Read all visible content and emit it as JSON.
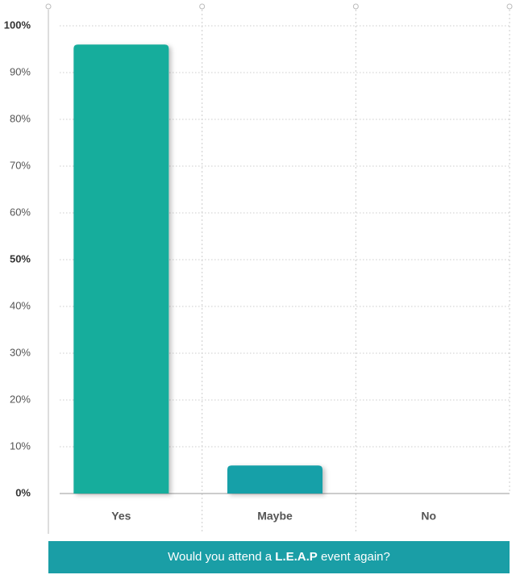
{
  "chart_data": {
    "type": "bar",
    "title_parts": [
      "Would you attend a ",
      "L.E.A.P",
      " event again?"
    ],
    "categories": [
      "Yes",
      "Maybe",
      "No"
    ],
    "values": [
      96,
      6,
      0
    ],
    "colors": [
      "#12ad9c",
      "#17a0a8",
      "#17a0a8"
    ],
    "ylim": [
      0,
      100
    ],
    "yticks": [
      {
        "value": 0,
        "label": "0%"
      },
      {
        "value": 10,
        "label": "10%"
      },
      {
        "value": 20,
        "label": "20%"
      },
      {
        "value": 30,
        "label": "30%"
      },
      {
        "value": 40,
        "label": "40%"
      },
      {
        "value": 50,
        "label": "50%"
      },
      {
        "value": 60,
        "label": "60%"
      },
      {
        "value": 70,
        "label": "70%"
      },
      {
        "value": 80,
        "label": "80%"
      },
      {
        "value": 90,
        "label": "90%"
      },
      {
        "value": 100,
        "label": "100%"
      }
    ],
    "grid": true,
    "title_color": "#1a9ea6"
  }
}
